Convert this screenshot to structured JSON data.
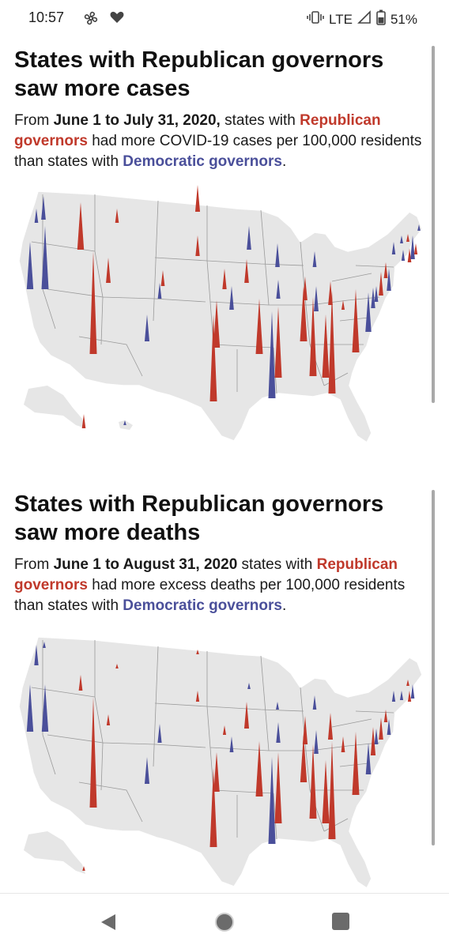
{
  "status_bar": {
    "time": "10:57",
    "left_icons": [
      "fan-icon",
      "heart-icon"
    ],
    "right_icons": [
      "vibrate-icon",
      "lte-signal-icon",
      "battery-icon"
    ],
    "network": "LTE",
    "battery": "51%"
  },
  "sections": [
    {
      "headline": "States with Republican governors saw more cases",
      "dek": {
        "prefix": "From ",
        "date_range": "June 1 to July 31, 2020,",
        "middle": " states with ",
        "rep_label": "Republican governors",
        "metric": " had more COVID-19 cases per 100,000 residents than states with ",
        "dem_label": "Democratic governors",
        "end": "."
      }
    },
    {
      "headline": "States with Republican governors saw more deaths",
      "dek": {
        "prefix": "From ",
        "date_range": "June 1 to August 31, 2020",
        "middle": " states with ",
        "rep_label": "Republican governors",
        "metric": " had more excess deaths per 100,000 residents than states with ",
        "dem_label": "Democratic governors",
        "end": "."
      }
    }
  ],
  "colors": {
    "republican": "#c0392b",
    "democratic": "#4a4f9a",
    "land": "#e8e8e8",
    "border": "#9a9a9a"
  },
  "nav_bar": {
    "buttons": [
      "back-button",
      "home-button",
      "recents-button"
    ]
  }
}
